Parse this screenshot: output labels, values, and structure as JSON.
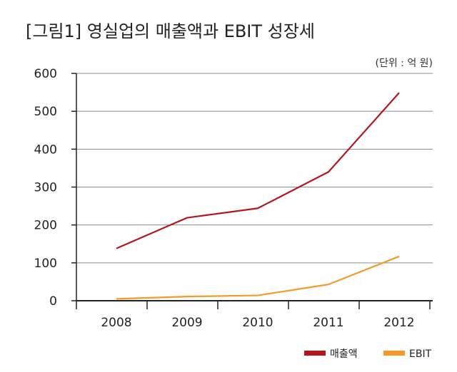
{
  "chart_data": {
    "type": "line",
    "title": "[그림1] 영실업의 매출액과 EBIT 성장세",
    "unit_label": "(단위 : 억 원)",
    "x": [
      "2008",
      "2009",
      "2010",
      "2011",
      "2012"
    ],
    "ylim": [
      0,
      600
    ],
    "yticks": [
      0,
      100,
      200,
      300,
      400,
      500,
      600
    ],
    "grid": true,
    "legend_position": "bottom-right",
    "series": [
      {
        "name": "매출액",
        "color": "#b3171d",
        "values": [
          138,
          219,
          244,
          340,
          549
        ]
      },
      {
        "name": "EBIT",
        "color": "#f39a2b",
        "values": [
          5,
          11,
          14,
          43,
          117
        ]
      }
    ]
  }
}
